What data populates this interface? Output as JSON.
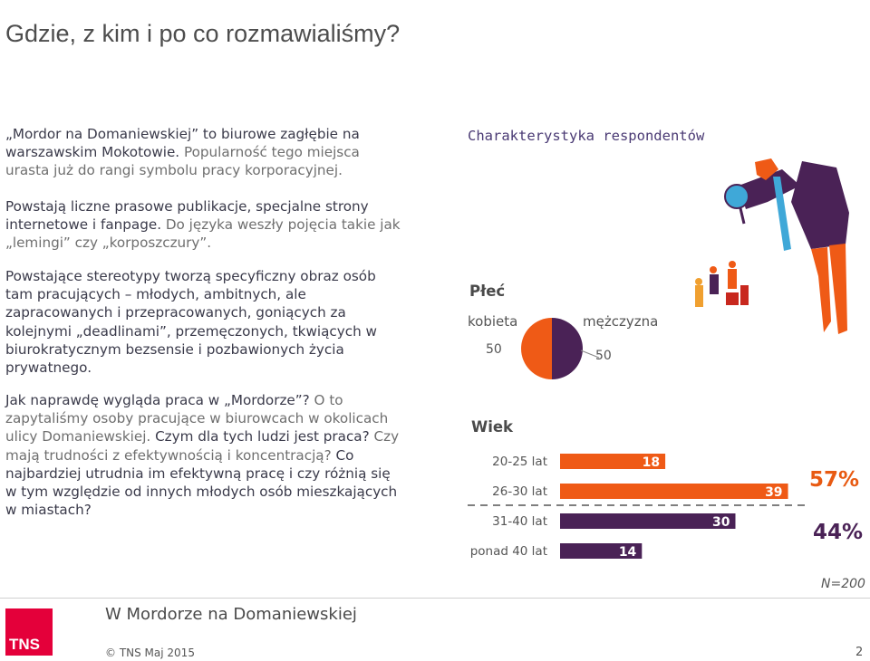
{
  "header": {
    "title": "Gdzie, z kim i po co rozmawialiśmy?"
  },
  "intro": {
    "p1": [
      {
        "text": "„Mordor na Domaniewskiej” to biurowe zagłębie na warszawskim Mokotowie. ",
        "style": "strong"
      },
      {
        "text": "Popularność tego miejsca urasta już do rangi symbolu pracy korporacyjnej.",
        "style": "light"
      }
    ],
    "p2": [
      {
        "text": "Powstają liczne prasowe publikacje, specjalne strony internetowe i fanpage. ",
        "style": "strong"
      },
      {
        "text": "Do języka weszły pojęcia takie jak „lemingi” czy „korposzczury”.",
        "style": "light"
      }
    ],
    "p3": [
      {
        "text": "Powstające stereotypy tworzą specyficzny obraz osób tam pracujących – młodych, ambitnych, ale zapracowanych i przepracowanych, goniących za kolejnymi „deadlinami”, przemęczonych, tkwiących w biurokratycznym bezsensie i pozbawionych życia prywatnego.",
        "style": "strong"
      }
    ],
    "p4": [
      {
        "text": "Jak naprawdę wygląda praca w „Mordorze”? ",
        "style": "strong"
      },
      {
        "text": "O to zapytaliśmy osoby pracujące w biurowcach w okolicach ulicy Domaniewskiej. ",
        "style": "light"
      },
      {
        "text": "Czym dla tych ludzi jest praca? ",
        "style": "strong"
      },
      {
        "text": "Czy mają trudności z efektywnością i koncentracją? ",
        "style": "light"
      },
      {
        "text": "Co najbardziej utrudnia im efektywną pracę i czy różnią się w tym względzie od innych młodych osób mieszkających w miastach?",
        "style": "strong"
      }
    ]
  },
  "respondents": {
    "title": "Charakterystyka respondentów",
    "gender": {
      "title": "Płeć",
      "female_label": "kobieta",
      "male_label": "mężczyzna",
      "female_value": "50",
      "male_value": "50"
    },
    "age": {
      "title": "Wiek",
      "pct_young": "57%",
      "pct_old": "44%"
    },
    "sample": "N=200"
  },
  "chart_data": [
    {
      "type": "pie",
      "labels": [
        "kobieta",
        "mężczyzna"
      ],
      "values": [
        50,
        50
      ],
      "colors": [
        "#ef5a16",
        "#4a2256"
      ]
    },
    {
      "type": "bar",
      "orientation": "horizontal",
      "categories": [
        "20-25 lat",
        "26-30 lat",
        "31-40 lat",
        "ponad 40 lat"
      ],
      "values": [
        18,
        39,
        30,
        14
      ],
      "colors": [
        "#ef5a16",
        "#ef5a16",
        "#4a2256",
        "#4a2256"
      ],
      "groups": [
        {
          "categories": [
            "20-25 lat",
            "26-30 lat"
          ],
          "total_label": "57%"
        },
        {
          "categories": [
            "31-40 lat",
            "ponad 40 lat"
          ],
          "total_label": "44%"
        }
      ]
    }
  ],
  "footer": {
    "logo": "TNS",
    "title": "W Mordorze na Domaniewskiej",
    "copyright": "© TNS Maj 2015",
    "page": "2"
  },
  "theme": {
    "orange": "#ef5a16",
    "purple": "#4a2256",
    "brand_red": "#e4003a"
  },
  "icons": [
    "magnifier-figure-illustration",
    "office-workers-illustration"
  ]
}
